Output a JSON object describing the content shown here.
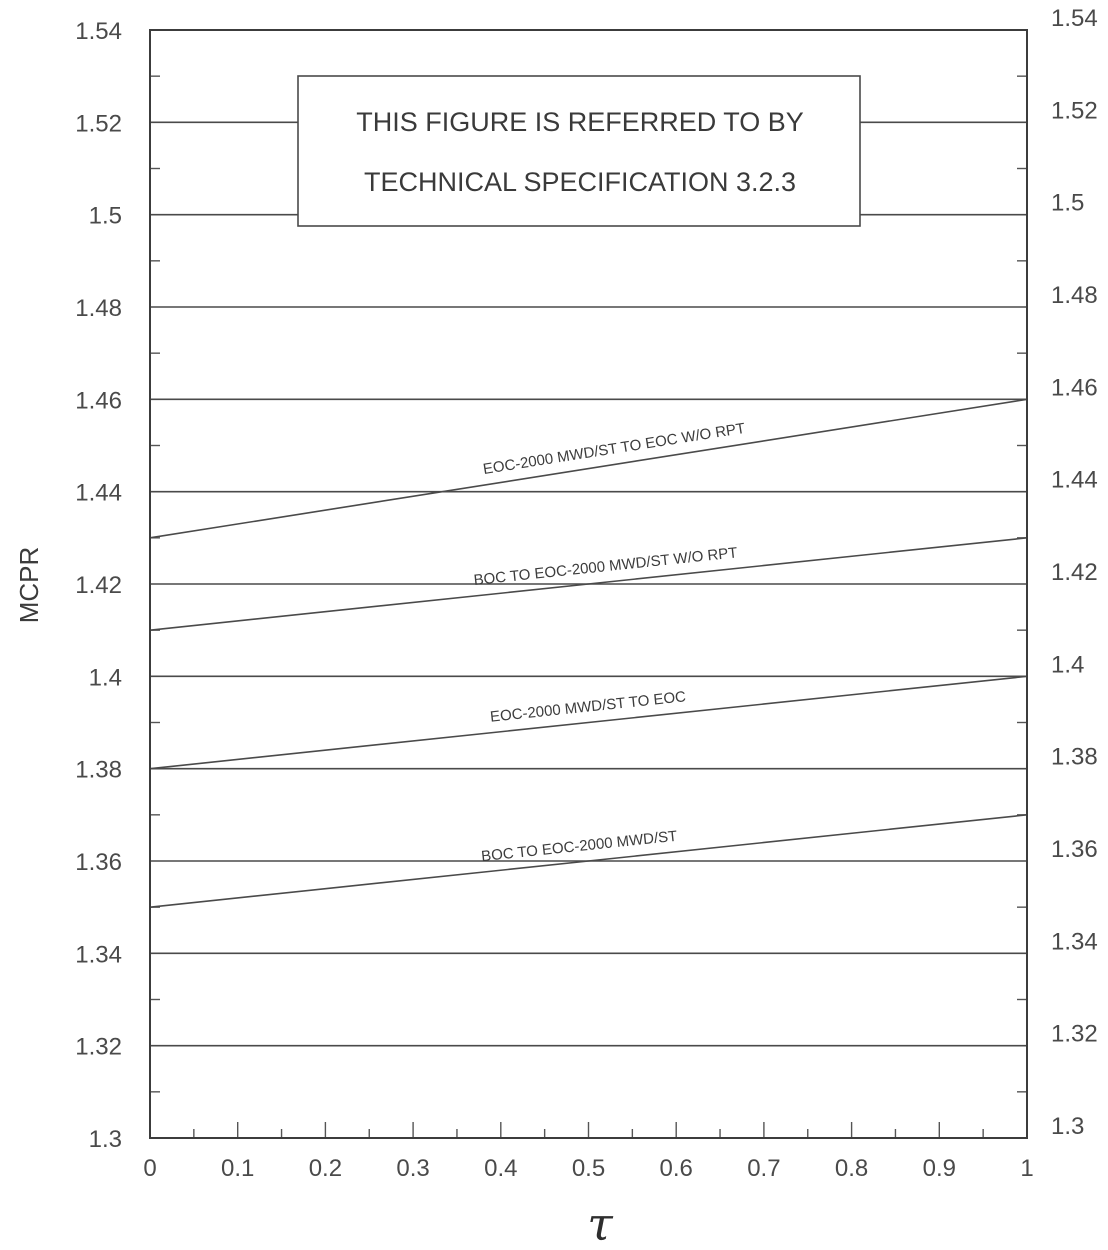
{
  "chart_data": {
    "type": "line",
    "title": "",
    "xlabel": "τ",
    "ylabel": "MCPR",
    "xlim": [
      0,
      1
    ],
    "ylim": [
      1.3,
      1.54
    ],
    "grid": true,
    "x_ticks": [
      "0",
      "0.1",
      "0.2",
      "0.3",
      "0.4",
      "0.5",
      "0.6",
      "0.7",
      "0.8",
      "0.9",
      "1"
    ],
    "y_ticks_left": [
      "1.54",
      "1.52",
      "1.5",
      "1.48",
      "1.46",
      "1.44",
      "1.42",
      "1.4",
      "1.38",
      "1.36",
      "1.34",
      "1.32",
      "1.3"
    ],
    "y_ticks_right": [
      "1.54",
      "1.52",
      "1.5",
      "1.48",
      "1.46",
      "1.44",
      "1.42",
      "1.4",
      "1.38",
      "1.36",
      "1.34",
      "1.32",
      "1.3"
    ],
    "series": [
      {
        "name": "EOC-2000 MWD/ST TO EOC W/O RPT",
        "x": [
          0,
          1
        ],
        "y": [
          1.43,
          1.46
        ]
      },
      {
        "name": "BOC TO EOC-2000 MWD/ST W/O RPT",
        "x": [
          0,
          1
        ],
        "y": [
          1.41,
          1.43
        ]
      },
      {
        "name": "EOC-2000 MWD/ST TO EOC",
        "x": [
          0,
          1
        ],
        "y": [
          1.38,
          1.4
        ]
      },
      {
        "name": "BOC TO EOC-2000 MWD/ST",
        "x": [
          0,
          1
        ],
        "y": [
          1.35,
          1.37
        ]
      }
    ],
    "annotation": {
      "line1": "THIS FIGURE IS REFERRED TO BY",
      "line2": "TECHNICAL SPECIFICATION 3.2.3"
    }
  }
}
